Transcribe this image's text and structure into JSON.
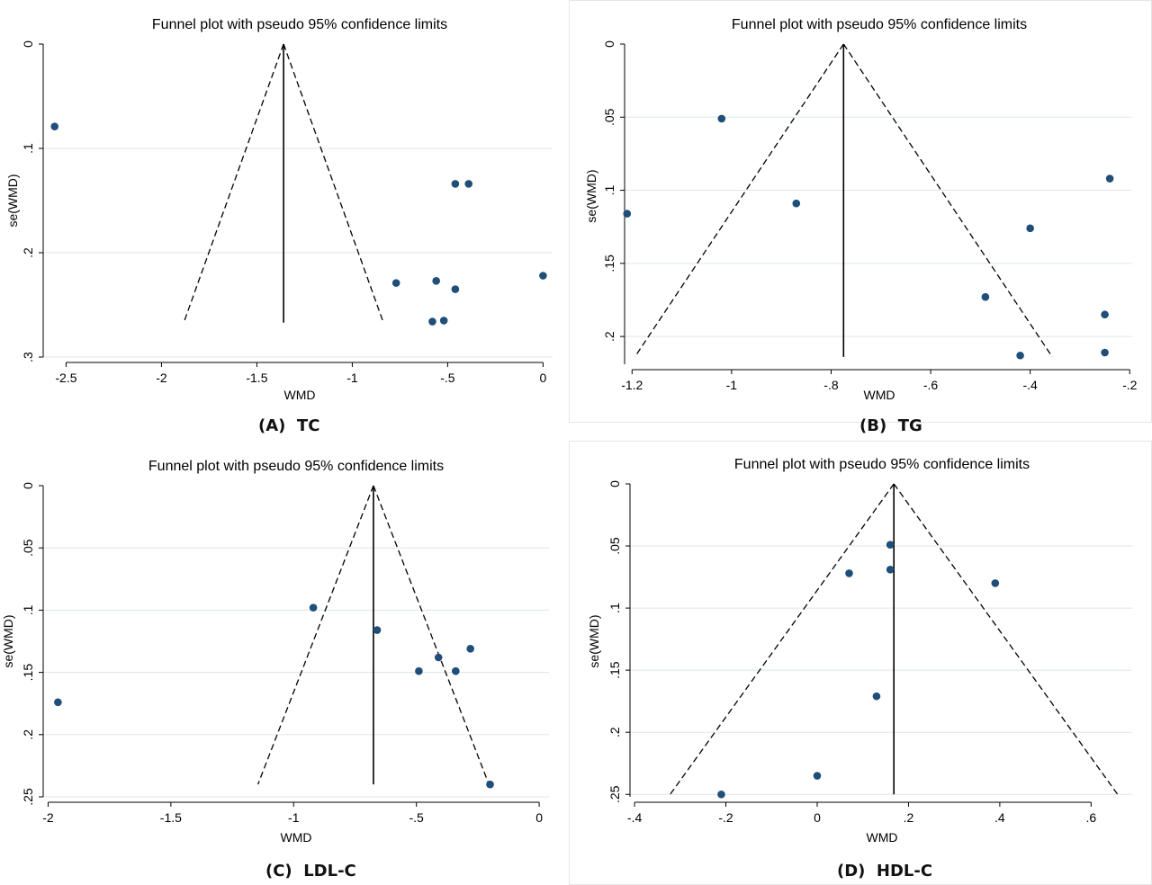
{
  "colors": {
    "point": "#1f4e79",
    "grid": "#dde6ea",
    "line": "#000000"
  },
  "panels": [
    {
      "caption": "(A)  TC",
      "chart_data": {
        "type": "scatter",
        "title": "Funnel plot with pseudo 95% confidence limits",
        "xlabel": "WMD",
        "ylabel": "se(WMD)",
        "y_reversed": true,
        "xlim": [
          -2.62,
          0.05
        ],
        "ylim": [
          0,
          0.3
        ],
        "xticks": [
          -2.5,
          -2,
          -1.5,
          -1,
          -0.5,
          0
        ],
        "xtick_labels": [
          "-2.5",
          "-2",
          "-1.5",
          "-1",
          "-.5",
          "0"
        ],
        "yticks": [
          0,
          0.1,
          0.2,
          0.3
        ],
        "ytick_labels": [
          "0",
          ".1",
          ".2",
          ".3"
        ],
        "pooled_effect": -1.36,
        "funnel_max_se": 0.267,
        "points": [
          {
            "x": -2.56,
            "y": 0.079
          },
          {
            "x": -0.46,
            "y": 0.134
          },
          {
            "x": -0.39,
            "y": 0.134
          },
          {
            "x": -0.77,
            "y": 0.229
          },
          {
            "x": -0.56,
            "y": 0.227
          },
          {
            "x": -0.46,
            "y": 0.235
          },
          {
            "x": 0.0,
            "y": 0.222
          },
          {
            "x": -0.58,
            "y": 0.266
          },
          {
            "x": -0.52,
            "y": 0.265
          }
        ]
      }
    },
    {
      "caption": "(B)  TG",
      "chart_data": {
        "type": "scatter",
        "title": "Funnel plot with pseudo 95% confidence limits",
        "xlabel": "WMD",
        "ylabel": "se(WMD)",
        "y_reversed": true,
        "xlim": [
          -1.215,
          -0.195
        ],
        "ylim": [
          0,
          0.219
        ],
        "xticks": [
          -1.2,
          -1,
          -0.8,
          -0.6,
          -0.4,
          -0.2
        ],
        "xtick_labels": [
          "-1.2",
          "-1",
          "-.8",
          "-.6",
          "-.4",
          "-.2"
        ],
        "yticks": [
          0,
          0.05,
          0.1,
          0.15,
          0.2
        ],
        "ytick_labels": [
          "0",
          ".05",
          ".1",
          ".15",
          ".2"
        ],
        "pooled_effect": -0.775,
        "funnel_max_se": 0.214,
        "points": [
          {
            "x": -1.02,
            "y": 0.051
          },
          {
            "x": -1.21,
            "y": 0.116
          },
          {
            "x": -0.87,
            "y": 0.109
          },
          {
            "x": -0.4,
            "y": 0.126
          },
          {
            "x": -0.24,
            "y": 0.092
          },
          {
            "x": -0.49,
            "y": 0.173
          },
          {
            "x": -0.25,
            "y": 0.185
          },
          {
            "x": -0.42,
            "y": 0.213
          },
          {
            "x": -0.25,
            "y": 0.211
          }
        ]
      }
    },
    {
      "caption": "(C)  LDL-C",
      "chart_data": {
        "type": "scatter",
        "title": "Funnel plot with pseudo 95% confidence limits",
        "xlabel": "WMD",
        "ylabel": "se(WMD)",
        "y_reversed": true,
        "xlim": [
          -2.02,
          0.04
        ],
        "ylim": [
          0,
          0.25
        ],
        "xticks": [
          -2,
          -1.5,
          -1,
          -0.5,
          0
        ],
        "xtick_labels": [
          "-2",
          "-1.5",
          "-1",
          "-.5",
          "0"
        ],
        "yticks": [
          0,
          0.05,
          0.1,
          0.15,
          0.2,
          0.25
        ],
        "ytick_labels": [
          "0",
          ".05",
          ".1",
          ".15",
          ".2",
          ".25"
        ],
        "pooled_effect": -0.675,
        "funnel_max_se": 0.24,
        "points": [
          {
            "x": -1.96,
            "y": 0.174
          },
          {
            "x": -0.92,
            "y": 0.098
          },
          {
            "x": -0.66,
            "y": 0.116
          },
          {
            "x": -0.41,
            "y": 0.138
          },
          {
            "x": -0.28,
            "y": 0.131
          },
          {
            "x": -0.49,
            "y": 0.149
          },
          {
            "x": -0.34,
            "y": 0.149
          },
          {
            "x": -0.2,
            "y": 0.24
          }
        ]
      }
    },
    {
      "caption": "(D)  HDL-C",
      "chart_data": {
        "type": "scatter",
        "title": "Funnel plot with pseudo 95% confidence limits",
        "xlabel": "WMD",
        "ylabel": "se(WMD)",
        "y_reversed": true,
        "xlim": [
          -0.41,
          0.69
        ],
        "ylim": [
          0,
          0.252
        ],
        "xticks": [
          -0.4,
          -0.2,
          0,
          0.2,
          0.4,
          0.6
        ],
        "xtick_labels": [
          "-.4",
          "-.2",
          "0",
          ".2",
          ".4",
          ".6"
        ],
        "yticks": [
          0,
          0.05,
          0.1,
          0.15,
          0.2,
          0.25
        ],
        "ytick_labels": [
          "0",
          ".05",
          ".1",
          ".15",
          ".2",
          ".25"
        ],
        "pooled_effect": 0.168,
        "funnel_max_se": 0.25,
        "points": [
          {
            "x": 0.16,
            "y": 0.049
          },
          {
            "x": 0.07,
            "y": 0.072
          },
          {
            "x": 0.16,
            "y": 0.069
          },
          {
            "x": 0.39,
            "y": 0.08
          },
          {
            "x": 0.13,
            "y": 0.171
          },
          {
            "x": 0.0,
            "y": 0.235
          },
          {
            "x": -0.21,
            "y": 0.25
          }
        ]
      }
    }
  ]
}
